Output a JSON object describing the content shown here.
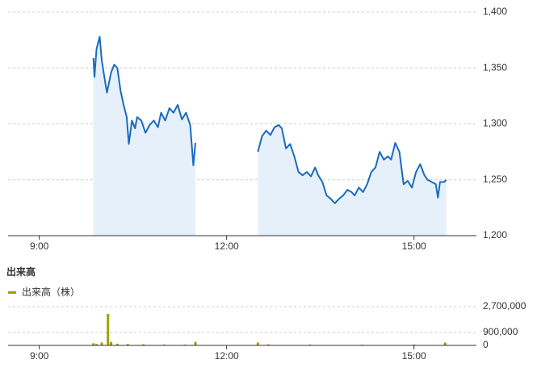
{
  "chart_data": [
    {
      "type": "line",
      "color": "#1a6bbf",
      "fill": "#e6f0fa",
      "x": [
        592,
        593,
        595,
        598,
        600,
        603,
        605,
        609,
        612,
        615,
        618,
        621,
        624,
        626,
        629,
        632,
        634,
        638,
        642,
        646,
        650,
        654,
        657,
        661,
        665,
        669,
        673,
        677,
        681,
        685,
        688,
        690,
        720,
        750,
        754,
        758,
        762,
        766,
        770,
        773,
        777,
        781,
        785,
        789,
        793,
        797,
        801,
        805,
        808,
        812,
        816,
        820,
        824,
        828,
        832,
        836,
        840,
        843,
        847,
        851,
        855,
        859,
        863,
        867,
        871,
        875,
        878,
        882,
        886,
        890,
        894,
        898,
        902,
        906,
        910,
        913,
        917,
        921,
        923,
        925,
        929,
        931
      ],
      "values": [
        1359,
        1342,
        1367,
        1378,
        1357,
        1339,
        1328,
        1346,
        1353,
        1350,
        1330,
        1317,
        1306,
        1282,
        1303,
        1296,
        1306,
        1303,
        1292,
        1299,
        1303,
        1297,
        1310,
        1303,
        1314,
        1310,
        1317,
        1304,
        1310,
        1299,
        1263,
        1283,
        null,
        1275,
        1289,
        1294,
        1290,
        1297,
        1299,
        1296,
        1278,
        1282,
        1271,
        1257,
        1254,
        1257,
        1253,
        1261,
        1254,
        1248,
        1236,
        1233,
        1229,
        1233,
        1236,
        1241,
        1239,
        1236,
        1243,
        1239,
        1246,
        1257,
        1261,
        1275,
        1268,
        1271,
        1268,
        1283,
        1275,
        1246,
        1249,
        1243,
        1257,
        1264,
        1254,
        1250,
        1248,
        1246,
        1234,
        1248,
        1248,
        1250
      ],
      "xlim": [
        510,
        960
      ],
      "xticks": [
        {
          "value": 540,
          "label": "9:00"
        },
        {
          "value": 720,
          "label": "12:00"
        },
        {
          "value": 900,
          "label": "15:00"
        }
      ],
      "ylim": [
        1200,
        1400
      ],
      "yticks": [
        {
          "value": 1200,
          "label": "1,200"
        },
        {
          "value": 1250,
          "label": "1,250"
        },
        {
          "value": 1300,
          "label": "1,300"
        },
        {
          "value": 1350,
          "label": "1,350"
        },
        {
          "value": 1400,
          "label": "1,400"
        }
      ],
      "grid": true
    },
    {
      "type": "bar",
      "title": "出来高",
      "x": [
        592,
        595,
        600,
        606,
        609,
        615,
        625,
        640,
        660,
        680,
        690,
        750,
        760,
        800,
        850,
        900,
        930
      ],
      "series": [
        {
          "name": "出来高（株）",
          "color": "#a39e00",
          "values": [
            150000,
            100000,
            200000,
            2200000,
            250000,
            120000,
            100000,
            80000,
            60000,
            60000,
            250000,
            200000,
            80000,
            60000,
            50000,
            60000,
            200000
          ]
        }
      ],
      "xlim": [
        510,
        960
      ],
      "xticks": [
        {
          "value": 540,
          "label": "9:00"
        },
        {
          "value": 720,
          "label": "12:00"
        },
        {
          "value": 900,
          "label": "15:00"
        }
      ],
      "ylim": [
        0,
        2700000
      ],
      "yticks": [
        {
          "value": 0,
          "label": "0"
        },
        {
          "value": 900000,
          "label": "900,000"
        },
        {
          "value": 2700000,
          "label": "2,700,000"
        }
      ],
      "grid": true
    }
  ]
}
